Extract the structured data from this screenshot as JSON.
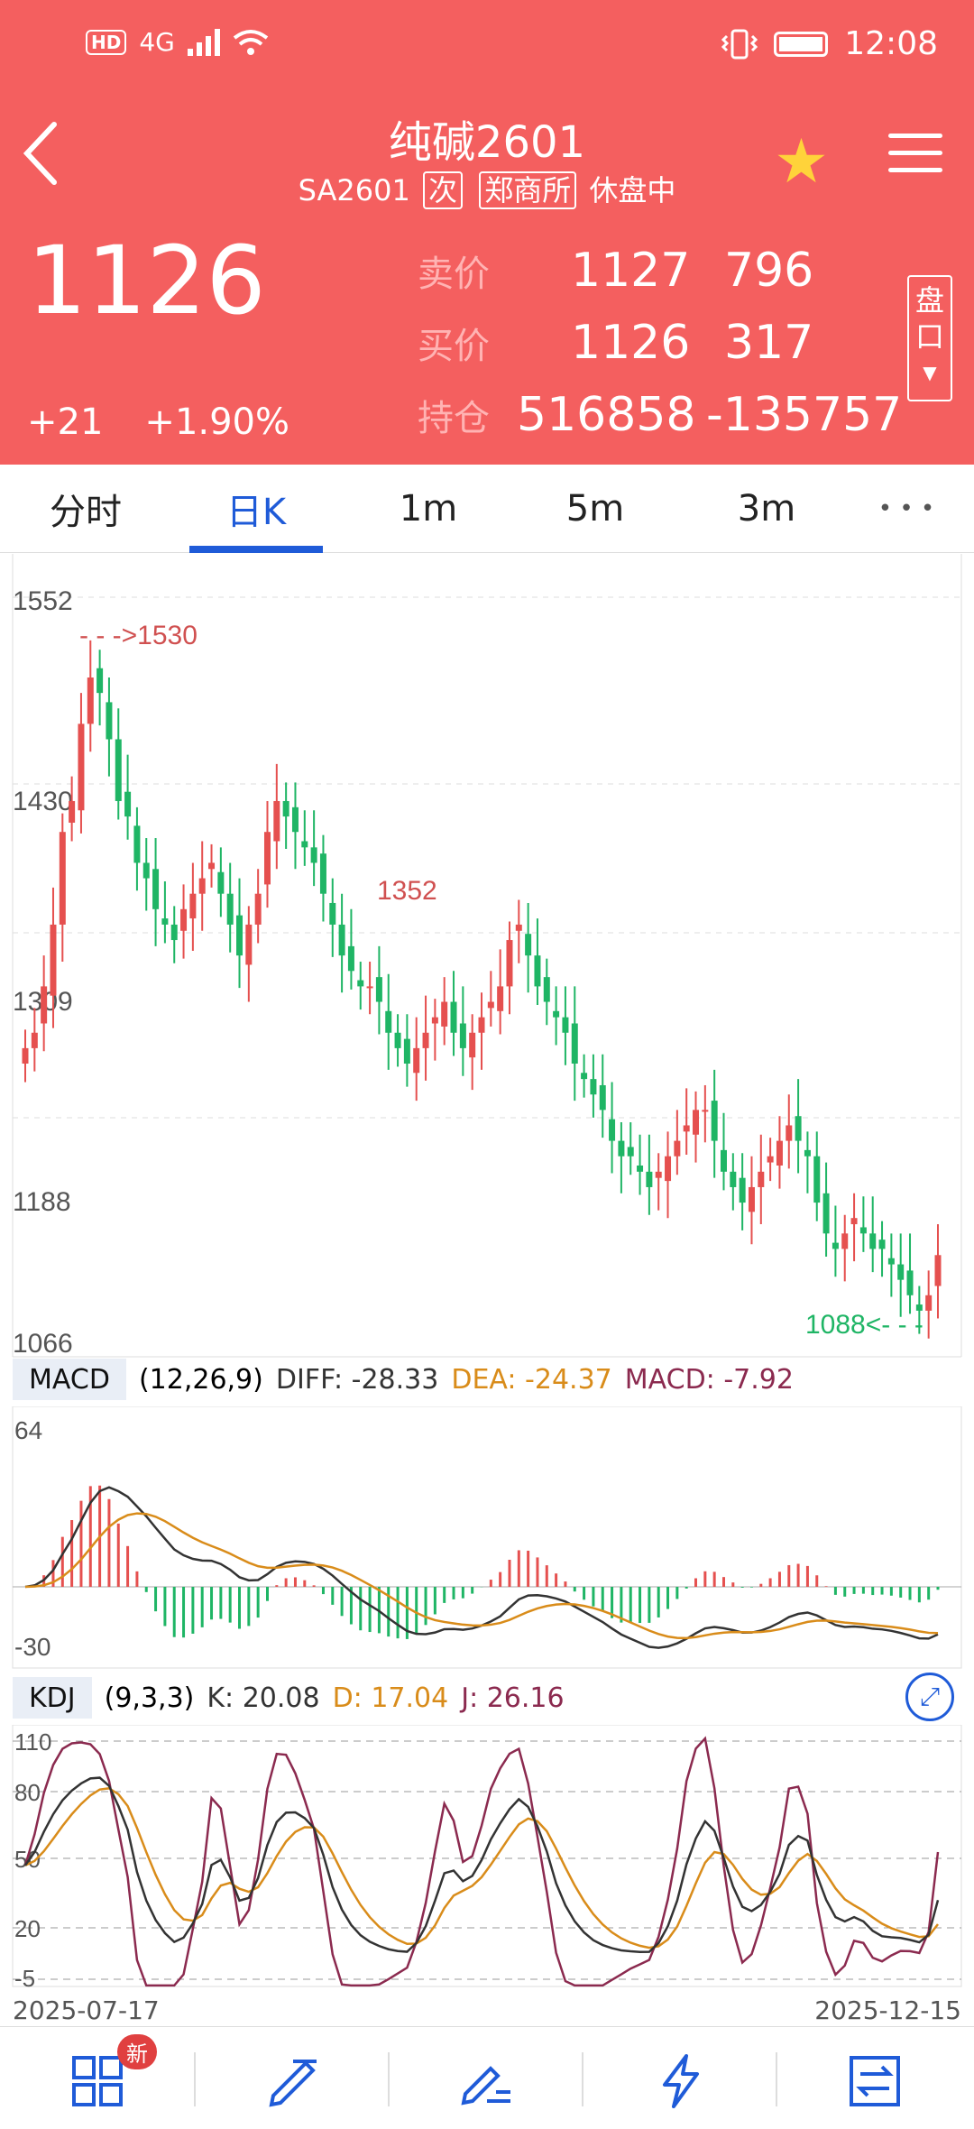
{
  "status": {
    "hd": "HD",
    "network": "4G",
    "time": "12:08"
  },
  "header": {
    "title": "纯碱2601",
    "code": "SA2601",
    "tag_secondary": "次",
    "exchange": "郑商所",
    "session_status": "休盘中",
    "last_price": "1126",
    "change": "+21",
    "change_pct": "+1.90%",
    "ask_label": "卖价",
    "ask_price": "1127",
    "ask_volume": "796",
    "bid_label": "买价",
    "bid_price": "1126",
    "bid_volume": "317",
    "oi_label": "持仓",
    "oi_value": "516858",
    "oi_change": "-135757",
    "panel_label_1": "盘",
    "panel_label_2": "口"
  },
  "tabs": [
    {
      "label": "分时",
      "active": false
    },
    {
      "label": "日K",
      "active": true
    },
    {
      "label": "1m",
      "active": false
    },
    {
      "label": "5m",
      "active": false
    },
    {
      "label": "3m",
      "active": false
    },
    {
      "label": "• • •",
      "active": false
    }
  ],
  "colors": {
    "up": "#e5504f",
    "down": "#1fb565",
    "header_bg": "#f45f5f",
    "accent": "#1f5bd8",
    "dea": "#d98c1a",
    "macd": "#8b2a4f"
  },
  "kline": {
    "y_ticks": [
      "1552",
      "1430",
      "1309",
      "1188",
      "1066"
    ],
    "high_note": "- - ->1530",
    "mid_note": "1352",
    "low_note": "1088<- - -"
  },
  "macd": {
    "name": "MACD",
    "params": "(12,26,9)",
    "diff": "DIFF: -28.33",
    "dea": "DEA: -24.37",
    "macd": "MACD: -7.92",
    "y_top": "64",
    "y_bottom": "-30"
  },
  "kdj": {
    "name": "KDJ",
    "params": "(9,3,3)",
    "k": "K: 20.08",
    "d": "D: 17.04",
    "j": "J: 26.16",
    "levels": [
      "110",
      "80",
      "50",
      "20",
      "-5"
    ]
  },
  "dates": {
    "start": "2025-07-17",
    "end": "2025-12-15"
  },
  "bottom_nav": {
    "new_badge": "新"
  },
  "chart_data": {
    "type": "candlestick",
    "title": "纯碱2601",
    "x_start": "2025-07-17",
    "x_end": "2025-12-15",
    "ylim": [
      1066,
      1552
    ],
    "annotations": [
      {
        "label": "1530",
        "value": 1530
      },
      {
        "label": "1352",
        "value": 1352
      },
      {
        "label": "1088",
        "value": 1088
      }
    ],
    "close_approx": [
      1260,
      1270,
      1300,
      1340,
      1400,
      1420,
      1470,
      1500,
      1490,
      1460,
      1420,
      1410,
      1380,
      1370,
      1350,
      1340,
      1330,
      1350,
      1360,
      1370,
      1380,
      1360,
      1340,
      1320,
      1340,
      1360,
      1400,
      1420,
      1410,
      1400,
      1390,
      1380,
      1360,
      1340,
      1320,
      1310,
      1300,
      1300,
      1290,
      1270,
      1260,
      1250,
      1260,
      1270,
      1280,
      1290,
      1270,
      1260,
      1270,
      1280,
      1290,
      1300,
      1330,
      1340,
      1320,
      1300,
      1290,
      1280,
      1270,
      1250,
      1240,
      1230,
      1220,
      1200,
      1190,
      1190,
      1180,
      1170,
      1180,
      1190,
      1200,
      1210,
      1220,
      1220,
      1200,
      1180,
      1170,
      1160,
      1170,
      1180,
      1190,
      1200,
      1210,
      1200,
      1190,
      1160,
      1140,
      1130,
      1140,
      1150,
      1140,
      1130,
      1130,
      1120,
      1110,
      1100,
      1090,
      1100,
      1126
    ]
  }
}
